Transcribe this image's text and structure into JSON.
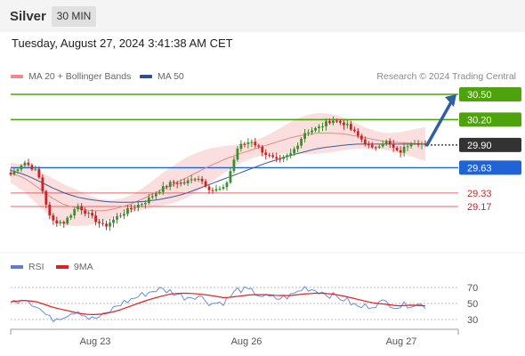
{
  "header": {
    "symbol": "Silver",
    "timeframe": "30 MIN"
  },
  "datetime": "Tuesday, August 27, 2024 3:41:38 AM CET",
  "legend": {
    "ma20_label": "MA 20 + Bollinger Bands",
    "ma50_label": "MA 50",
    "credit": "Research © 2024 Trading Central"
  },
  "rsi_legend": {
    "rsi_label": "RSI",
    "ma_label": "9MA"
  },
  "colors": {
    "bull": "#3a8f2a",
    "bear": "#cc2222",
    "ma20": "#e58a8a",
    "ma50": "#3b5a9a",
    "band": "#fbdede",
    "green_level": "#4ea30d",
    "blue_level": "#1f63d6",
    "red_level": "#e06666",
    "arrow": "#2e5fa8",
    "rsi": "#6a8de0",
    "rsi_ma": "#e02020"
  },
  "chart_data": [
    {
      "type": "candlestick",
      "title": "Silver",
      "interval": "30 MIN",
      "x_tick_labels": [
        "Aug 23",
        "Aug 26",
        "Aug 27"
      ],
      "ylim": [
        28.87,
        30.61
      ],
      "grid": false,
      "legend_position": "top-left",
      "key_levels": [
        {
          "value": 30.5,
          "label": "30.50",
          "kind": "resistance",
          "color": "#4ea30d"
        },
        {
          "value": 30.2,
          "label": "30.20",
          "kind": "resistance",
          "color": "#4ea30d"
        },
        {
          "value": 29.9,
          "label": "29.90",
          "kind": "last",
          "color": "#333333"
        },
        {
          "value": 29.63,
          "label": "29.63",
          "kind": "pivot",
          "color": "#1f63d6"
        },
        {
          "value": 29.33,
          "label": "29.33",
          "kind": "support",
          "color": "#e06666"
        },
        {
          "value": 29.17,
          "label": "29.17",
          "kind": "support",
          "color": "#e06666"
        }
      ],
      "projection": {
        "from": 29.9,
        "to": 30.5,
        "direction": "up"
      },
      "close_path": [
        29.55,
        29.7,
        29.58,
        29.0,
        28.98,
        29.18,
        29.05,
        28.93,
        29.05,
        29.15,
        29.22,
        29.35,
        29.45,
        29.45,
        29.52,
        29.36,
        29.38,
        29.88,
        29.95,
        29.8,
        29.7,
        29.8,
        30.05,
        30.1,
        30.2,
        30.15,
        30.0,
        29.85,
        29.95,
        29.8,
        29.95,
        29.9
      ],
      "series": [
        {
          "name": "MA 20 + Bollinger Bands",
          "values": [
            29.57,
            29.51,
            29.4,
            29.28,
            29.19,
            29.15,
            29.12,
            29.12,
            29.15,
            29.2,
            29.27,
            29.35,
            29.42,
            29.5,
            29.58,
            29.66,
            29.73,
            29.79,
            29.84,
            29.89,
            29.94,
            29.99,
            30.02,
            30.04,
            30.04,
            30.03,
            30.0,
            29.97,
            29.94,
            29.93,
            29.92,
            29.91
          ]
        },
        {
          "name": "MA 50",
          "values": [
            29.6,
            29.55,
            29.48,
            29.4,
            29.33,
            29.28,
            29.25,
            29.23,
            29.22,
            29.22,
            29.23,
            29.25,
            29.28,
            29.32,
            29.38,
            29.44,
            29.5,
            29.56,
            29.62,
            29.68,
            29.73,
            29.78,
            29.82,
            29.86,
            29.88,
            29.9,
            29.91,
            29.91,
            29.91,
            29.91,
            29.91,
            29.91
          ]
        }
      ]
    },
    {
      "type": "line",
      "title": "RSI",
      "ylim": [
        20,
        80
      ],
      "y_tick_labels": [
        "70",
        "50",
        "30"
      ],
      "series": [
        {
          "name": "RSI",
          "values": [
            50,
            58,
            46,
            30,
            35,
            42,
            30,
            35,
            48,
            55,
            62,
            68,
            65,
            58,
            60,
            50,
            52,
            68,
            65,
            58,
            56,
            60,
            70,
            66,
            60,
            55,
            45,
            48,
            52,
            46,
            50,
            47
          ]
        },
        {
          "name": "9MA",
          "values": [
            52,
            54,
            52,
            46,
            42,
            38,
            36,
            37,
            41,
            47,
            53,
            58,
            62,
            63,
            62,
            60,
            57,
            59,
            61,
            61,
            60,
            60,
            62,
            63,
            62,
            59,
            55,
            51,
            49,
            47,
            48,
            47
          ]
        }
      ]
    }
  ]
}
